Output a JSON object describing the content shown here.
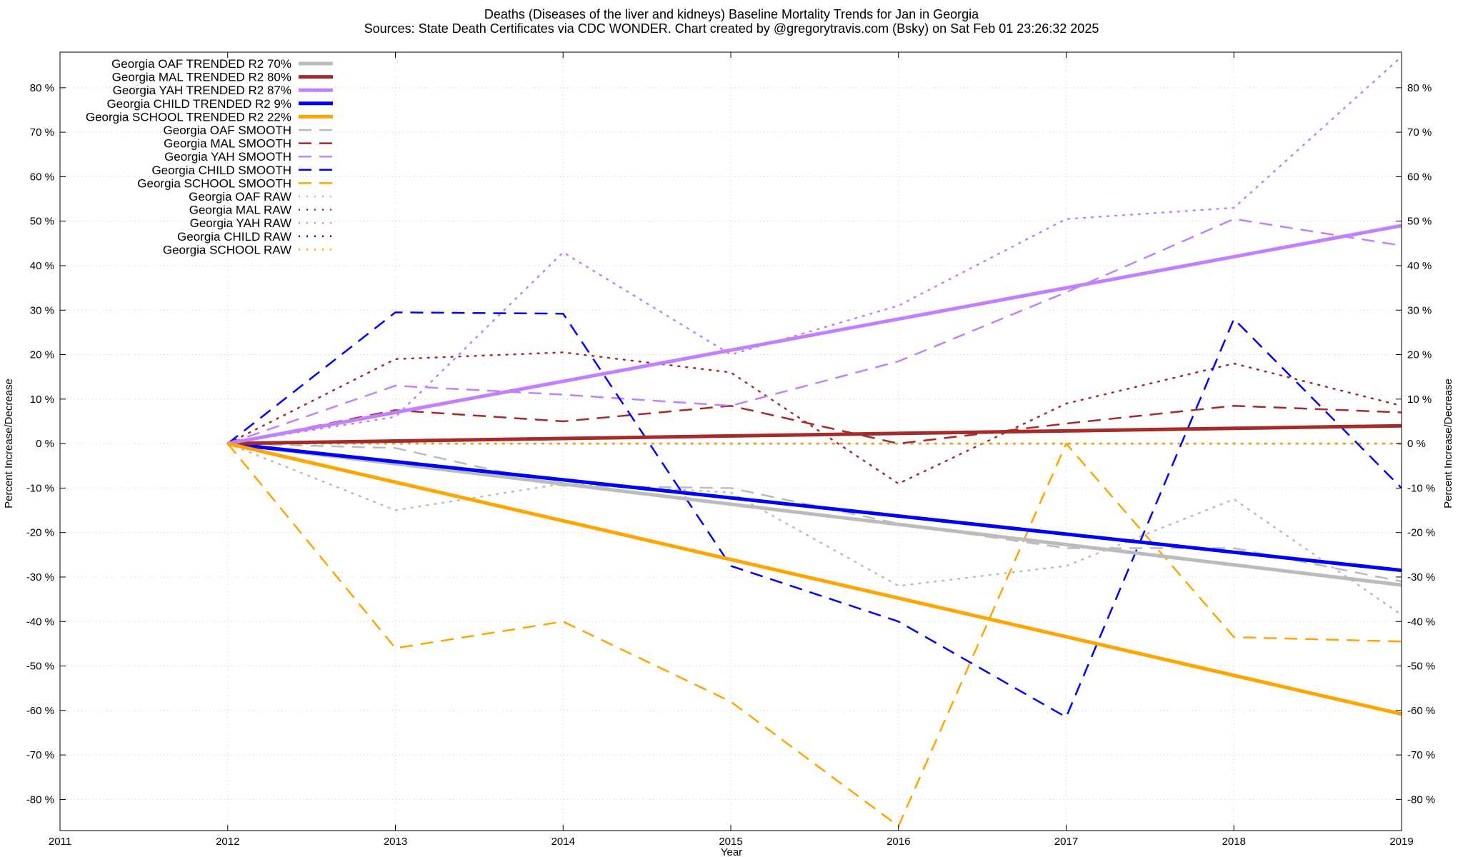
{
  "chart_data": {
    "type": "line",
    "title": "Deaths (Diseases of the liver and kidneys)  Baseline Mortality Trends for Jan in Georgia",
    "subtitle": "Sources: State Death Certificates via CDC WONDER.                Chart created by @gregorytravis.com (Bsky) on Sat Feb 01 23:26:32 2025",
    "xlabel": "Year",
    "ylabel": "Percent Increase/Decrease",
    "ylabel_right": "Percent Increase/Decrease",
    "xlim": [
      2011,
      2019
    ],
    "ylim": [
      -87,
      88
    ],
    "x_ticks": [
      2011,
      2012,
      2013,
      2014,
      2015,
      2016,
      2017,
      2018,
      2019
    ],
    "y_ticks": [
      -80,
      -70,
      -60,
      -50,
      -40,
      -30,
      -20,
      -10,
      0,
      10,
      20,
      30,
      40,
      50,
      60,
      70,
      80
    ],
    "y_tick_suffix": " %",
    "grid": true,
    "legend_position": "top-left",
    "series": [
      {
        "name": "Georgia OAF TRENDED R2  70%",
        "style": "solid",
        "color": "#bbbbbb",
        "width": 5,
        "x": [
          2012,
          2019
        ],
        "values": [
          0,
          -31.8
        ]
      },
      {
        "name": "Georgia MAL TRENDED R2  80%",
        "style": "solid",
        "color": "#a52a2a",
        "width": 5,
        "x": [
          2012,
          2019
        ],
        "values": [
          0,
          4
        ]
      },
      {
        "name": "Georgia YAH TRENDED R2  87%",
        "style": "solid",
        "color": "#c080ff",
        "width": 5,
        "x": [
          2012,
          2019
        ],
        "values": [
          0,
          49
        ]
      },
      {
        "name": "Georgia CHILD TRENDED R2   9%",
        "style": "solid",
        "color": "#0000ff",
        "width": 5,
        "x": [
          2012,
          2019
        ],
        "values": [
          0,
          -28.5
        ]
      },
      {
        "name": "Georgia SCHOOL TRENDED R2  22%",
        "style": "solid",
        "color": "#ffa500",
        "width": 5,
        "x": [
          2012,
          2019
        ],
        "values": [
          0,
          -60.8
        ]
      },
      {
        "name": "Georgia OAF SMOOTH",
        "style": "dashed",
        "color": "#bbbbbb",
        "width": 2.5,
        "x": [
          2012,
          2013,
          2014,
          2015,
          2016,
          2017,
          2018,
          2019
        ],
        "values": [
          0,
          -1,
          -9.5,
          -10,
          -18,
          -23.5,
          -23.5,
          -31
        ]
      },
      {
        "name": "Georgia MAL SMOOTH",
        "style": "dashed",
        "color": "#a52a2a",
        "width": 2.5,
        "x": [
          2012,
          2013,
          2014,
          2015,
          2016,
          2017,
          2018,
          2019
        ],
        "values": [
          0,
          7.5,
          5,
          8.5,
          0,
          4.5,
          8.5,
          7
        ]
      },
      {
        "name": "Georgia YAH SMOOTH",
        "style": "dashed",
        "color": "#c080ff",
        "width": 2.5,
        "x": [
          2012,
          2013,
          2014,
          2015,
          2016,
          2017,
          2018,
          2019
        ],
        "values": [
          0,
          13,
          11,
          8.5,
          18.5,
          34,
          50.5,
          44.5
        ]
      },
      {
        "name": "Georgia CHILD SMOOTH",
        "style": "dashed",
        "color": "#0000ff",
        "width": 2.5,
        "x": [
          2012,
          2013,
          2014,
          2015,
          2016,
          2017,
          2018,
          2019
        ],
        "values": [
          0,
          29.5,
          29.2,
          -27.5,
          -40,
          -61.5,
          28,
          -10
        ]
      },
      {
        "name": "Georgia SCHOOL SMOOTH",
        "style": "dashed",
        "color": "#ffa500",
        "width": 2.5,
        "x": [
          2012,
          2013,
          2014,
          2015,
          2016,
          2017,
          2018,
          2019
        ],
        "values": [
          0,
          -46,
          -40,
          -58,
          -86,
          0,
          -43.5,
          -44.5
        ]
      },
      {
        "name": "Georgia OAF RAW",
        "style": "dotted",
        "color": "#bbbbbb",
        "width": 2.5,
        "x": [
          2012,
          2013,
          2014,
          2015,
          2016,
          2017,
          2018,
          2019
        ],
        "values": [
          0,
          -15,
          -9,
          -11,
          -32,
          -27.5,
          -12.5,
          -38.5
        ]
      },
      {
        "name": "Georgia MAL RAW",
        "style": "dotted",
        "color": "#a52a2a",
        "width": 2.5,
        "x": [
          2012,
          2013,
          2014,
          2015,
          2016,
          2017,
          2018,
          2019
        ],
        "values": [
          0,
          19,
          20.5,
          16,
          -9,
          9,
          18,
          8.5
        ]
      },
      {
        "name": "Georgia YAH RAW",
        "style": "dotted",
        "color": "#c080ff",
        "width": 2.5,
        "x": [
          2012,
          2013,
          2014,
          2015,
          2016,
          2017,
          2018,
          2019
        ],
        "values": [
          0,
          6,
          43,
          20,
          31,
          50.5,
          53,
          87
        ]
      },
      {
        "name": "Georgia CHILD RAW",
        "style": "dotted",
        "color": "#0000ff",
        "width": 2.5,
        "x": [
          2012,
          2013,
          2014,
          2015,
          2016,
          2017,
          2018,
          2019
        ],
        "values": [
          0,
          0,
          0,
          0,
          0,
          0,
          0,
          0
        ]
      },
      {
        "name": "Georgia SCHOOL RAW",
        "style": "dotted",
        "color": "#ffa500",
        "width": 2.5,
        "x": [
          2012,
          2019
        ],
        "values": [
          0,
          0
        ]
      }
    ]
  }
}
